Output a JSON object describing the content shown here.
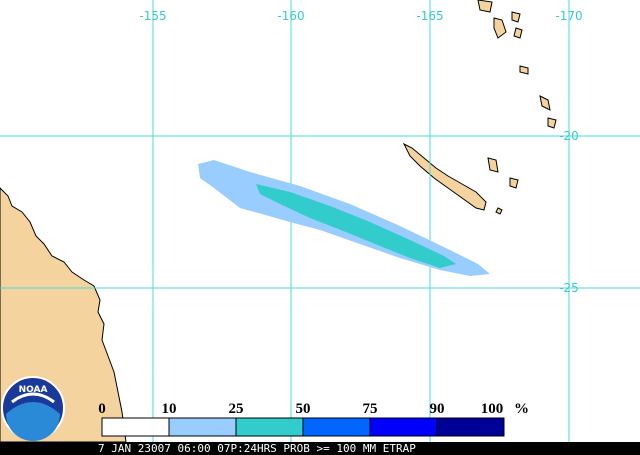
{
  "map": {
    "lon_labels": [
      "-155",
      "-160",
      "-165",
      "-170"
    ],
    "lat_labels": [
      "-20",
      "-25"
    ],
    "logo": "NOAA",
    "legend": {
      "levels": [
        0,
        10,
        25,
        50,
        75,
        90,
        100
      ],
      "unit": "%",
      "colors": [
        "#ffffff",
        "#99ccff",
        "#33cccc",
        "#0066ff",
        "#0000ff",
        "#000099"
      ]
    },
    "footer": "7 JAN 23007 06:00 07P:24HRS PROB >= 100 MM ETRAP"
  }
}
